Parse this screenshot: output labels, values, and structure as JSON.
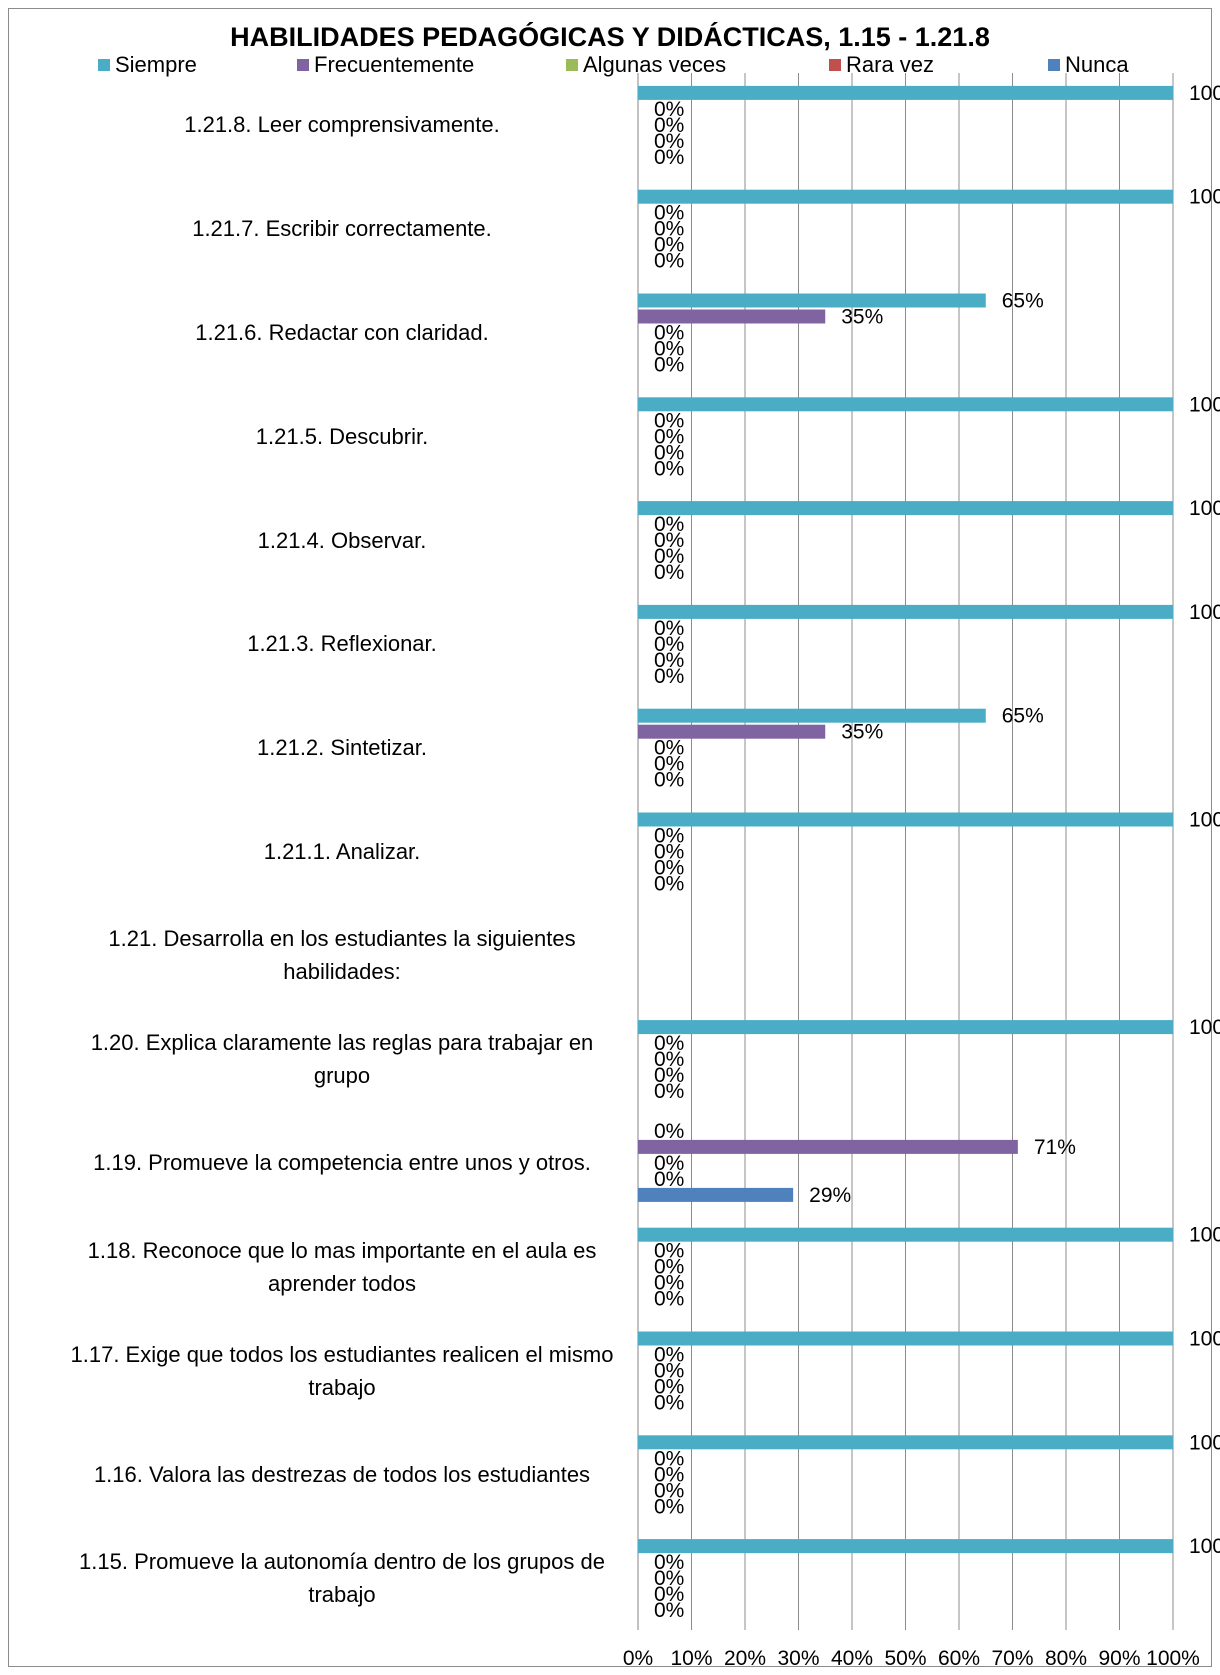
{
  "chart_data": {
    "type": "bar",
    "orientation": "horizontal",
    "title": "HABILIDADES PEDAGÓGICAS Y DIDÁCTICAS, 1.15 - 1.21.8",
    "legend_position": "top",
    "grid": true,
    "xlim": [
      0,
      100
    ],
    "x_ticks": [
      "0%",
      "10%",
      "20%",
      "30%",
      "40%",
      "50%",
      "60%",
      "70%",
      "80%",
      "90%",
      "100%"
    ],
    "categories": [
      "1.21.8.   Leer comprensivamente.",
      "1.21.7.   Escribir correctamente.",
      "1.21.6.   Redactar con claridad.",
      "1.21.5.   Descubrir.",
      "1.21.4.   Observar.",
      "1.21.3.   Reflexionar.",
      "1.21.2.   Sintetizar.",
      "1.21.1.   Analizar.",
      "1.21.  Desarrolla en los estudiantes la  siguientes habilidades:",
      "1.20.   Explica claramente las reglas para trabajar en grupo",
      "1.19.   Promueve la competencia entre unos y otros.",
      "1.18.   Reconoce que lo mas importante en el aula es aprender todos",
      "1.17.   Exige que todos los estudiantes realicen el mismo trabajo",
      "1.16.   Valora las destrezas de todos los estudiantes",
      "1.15.   Promueve la autonomía dentro de los grupos de trabajo"
    ],
    "series": [
      {
        "name": "Siempre",
        "color": "#4bacc6",
        "values": [
          100,
          100,
          65,
          100,
          100,
          100,
          65,
          100,
          null,
          100,
          0,
          100,
          100,
          100,
          100
        ]
      },
      {
        "name": "Frecuentemente",
        "color": "#8064a2",
        "values": [
          0,
          0,
          35,
          0,
          0,
          0,
          35,
          0,
          null,
          0,
          71,
          0,
          0,
          0,
          0
        ]
      },
      {
        "name": "Algunas veces",
        "color": "#9bbb59",
        "values": [
          0,
          0,
          0,
          0,
          0,
          0,
          0,
          0,
          null,
          0,
          0,
          0,
          0,
          0,
          0
        ]
      },
      {
        "name": "Rara vez",
        "color": "#c0504d",
        "values": [
          0,
          0,
          0,
          0,
          0,
          0,
          0,
          0,
          null,
          0,
          0,
          0,
          0,
          0,
          0
        ]
      },
      {
        "name": "Nunca",
        "color": "#4f81bd",
        "values": [
          0,
          0,
          0,
          0,
          0,
          0,
          0,
          0,
          null,
          0,
          29,
          0,
          0,
          0,
          0
        ]
      }
    ]
  }
}
